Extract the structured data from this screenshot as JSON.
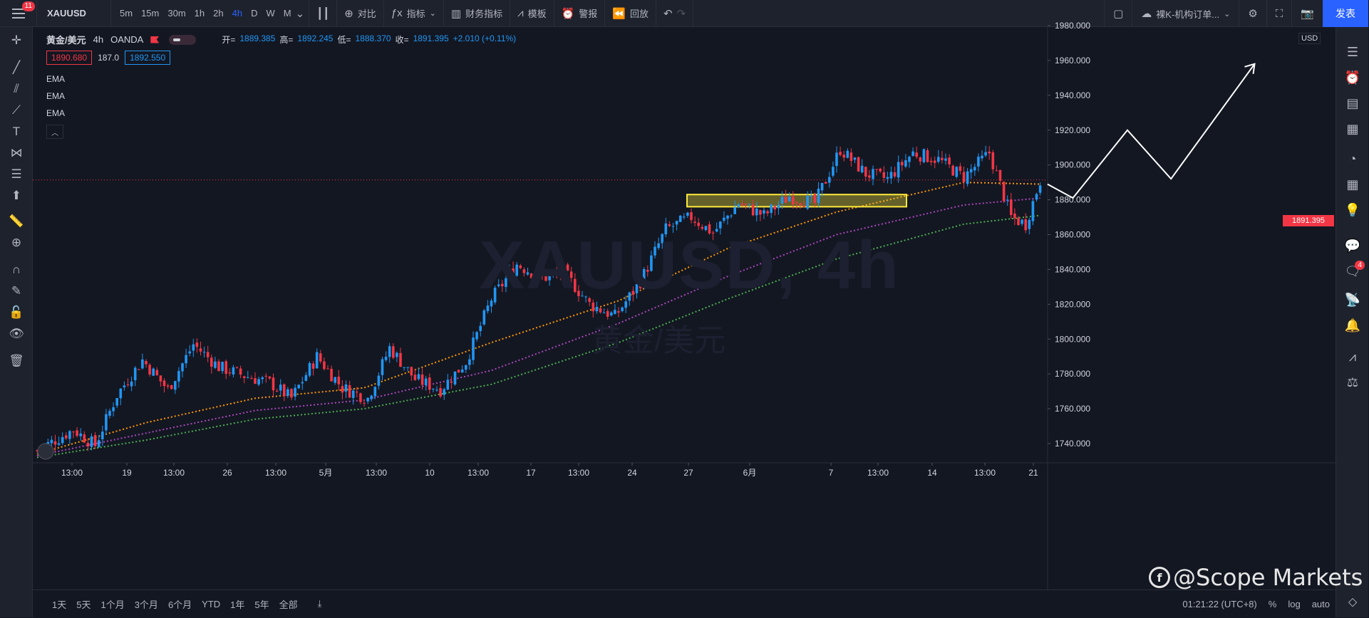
{
  "topbar": {
    "notification_count": "11",
    "symbol": "XAUUSD",
    "intervals": [
      "5m",
      "15m",
      "30m",
      "1h",
      "2h",
      "4h",
      "D",
      "W",
      "M"
    ],
    "active_interval": "4h",
    "compare_label": "对比",
    "indicators_label": "指标",
    "financials_label": "财务指标",
    "templates_label": "模板",
    "alert_label": "警报",
    "replay_label": "回放",
    "layout_name": "裸K-机构订单...",
    "publish_label": "发表"
  },
  "legend": {
    "name": "黄金/美元",
    "interval": "4h",
    "source": "OANDA",
    "open_label": "开=",
    "open_value": "1889.385",
    "high_label": "高=",
    "high_value": "1892.245",
    "low_label": "低=",
    "low_value": "1888.370",
    "close_label": "收=",
    "close_value": "1891.395",
    "change": "+2.010 (+0.11%)",
    "sell_price": "1890.680",
    "spread": "187.0",
    "buy_price": "1892.550",
    "indicators": [
      "EMA",
      "EMA",
      "EMA"
    ]
  },
  "watermark": {
    "symbol": "XAUUSD, 4h",
    "name": "黄金/美元"
  },
  "price_axis": {
    "currency": "USD",
    "ticks": [
      "1980.000",
      "1960.000",
      "1940.000",
      "1920.000",
      "1900.000",
      "1880.000",
      "1860.000",
      "1840.000",
      "1820.000",
      "1800.000",
      "1780.000",
      "1760.000",
      "1740.000"
    ],
    "current_price": "1891.395"
  },
  "time_axis": {
    "ticks": [
      "13:00",
      "19",
      "13:00",
      "26",
      "13:00",
      "5月",
      "13:00",
      "10",
      "13:00",
      "17",
      "13:00",
      "24",
      "27",
      "6月",
      "7",
      "13:00",
      "14",
      "13:00",
      "21"
    ]
  },
  "bottombar": {
    "ranges": [
      "1天",
      "5天",
      "1个月",
      "3个月",
      "6个月",
      "YTD",
      "1年",
      "5年",
      "全部"
    ],
    "time": "01:21:22 (UTC+8)",
    "percent_label": "%",
    "log_label": "log",
    "auto_label": "auto"
  },
  "branding": {
    "text": "@Scope Markets"
  },
  "rightbar": {
    "chat_badge": "4"
  },
  "colors": {
    "up": "#2196f3",
    "down": "#f23645",
    "ema_fast": "#ff9800",
    "ema_mid": "#ab47bc",
    "ema_slow": "#4caf50",
    "zone": "#ffeb3b"
  },
  "chart_data": {
    "type": "candlestick",
    "instrument": "XAUUSD",
    "interval": "4h",
    "ylim": [
      1730,
      1985
    ],
    "y_ticks": [
      1740,
      1760,
      1780,
      1800,
      1820,
      1840,
      1860,
      1880,
      1900,
      1920,
      1940,
      1960,
      1980
    ],
    "x_ticks": [
      "13:00",
      "19",
      "13:00",
      "26",
      "13:00",
      "5月",
      "13:00",
      "10",
      "13:00",
      "17",
      "13:00",
      "24",
      "27",
      "6月",
      "7",
      "13:00",
      "14",
      "13:00",
      "21"
    ],
    "price_path": [
      [
        0,
        1736
      ],
      [
        10,
        1748
      ],
      [
        16,
        1739
      ],
      [
        22,
        1768
      ],
      [
        29,
        1788
      ],
      [
        36,
        1771
      ],
      [
        43,
        1797
      ],
      [
        50,
        1784
      ],
      [
        57,
        1779
      ],
      [
        64,
        1775
      ],
      [
        70,
        1766
      ],
      [
        77,
        1790
      ],
      [
        84,
        1772
      ],
      [
        91,
        1766
      ],
      [
        97,
        1795
      ],
      [
        104,
        1777
      ],
      [
        111,
        1771
      ],
      [
        118,
        1787
      ],
      [
        125,
        1823
      ],
      [
        132,
        1843
      ],
      [
        139,
        1835
      ],
      [
        145,
        1838
      ],
      [
        152,
        1820
      ],
      [
        159,
        1813
      ],
      [
        166,
        1833
      ],
      [
        173,
        1863
      ],
      [
        180,
        1870
      ],
      [
        186,
        1861
      ],
      [
        193,
        1878
      ],
      [
        200,
        1871
      ],
      [
        207,
        1882
      ],
      [
        214,
        1878
      ],
      [
        221,
        1909
      ],
      [
        228,
        1895
      ],
      [
        234,
        1892
      ],
      [
        241,
        1907
      ],
      [
        248,
        1903
      ],
      [
        255,
        1893
      ],
      [
        262,
        1907
      ],
      [
        268,
        1870
      ],
      [
        272,
        1866
      ],
      [
        276,
        1891
      ]
    ],
    "series": [
      {
        "name": "EMA",
        "color": "#ff9800",
        "values": [
          [
            0,
            1734
          ],
          [
            30,
            1752
          ],
          [
            60,
            1766
          ],
          [
            90,
            1772
          ],
          [
            125,
            1798
          ],
          [
            160,
            1822
          ],
          [
            190,
            1852
          ],
          [
            220,
            1873
          ],
          [
            255,
            1890
          ],
          [
            276,
            1889
          ]
        ]
      },
      {
        "name": "EMA",
        "color": "#ab47bc",
        "values": [
          [
            0,
            1733
          ],
          [
            30,
            1746
          ],
          [
            60,
            1759
          ],
          [
            90,
            1765
          ],
          [
            125,
            1782
          ],
          [
            160,
            1809
          ],
          [
            190,
            1836
          ],
          [
            220,
            1860
          ],
          [
            255,
            1877
          ],
          [
            276,
            1881
          ]
        ]
      },
      {
        "name": "EMA",
        "color": "#4caf50",
        "values": [
          [
            0,
            1732
          ],
          [
            30,
            1742
          ],
          [
            60,
            1754
          ],
          [
            90,
            1760
          ],
          [
            125,
            1774
          ],
          [
            160,
            1798
          ],
          [
            190,
            1823
          ],
          [
            220,
            1846
          ],
          [
            255,
            1866
          ],
          [
            276,
            1871
          ]
        ]
      }
    ],
    "zone": {
      "y_low": 1876,
      "y_high": 1883
    },
    "projection": [
      [
        278,
        1889
      ],
      [
        285,
        1881
      ],
      [
        300,
        1920
      ],
      [
        312,
        1892
      ],
      [
        335,
        1958
      ]
    ]
  }
}
